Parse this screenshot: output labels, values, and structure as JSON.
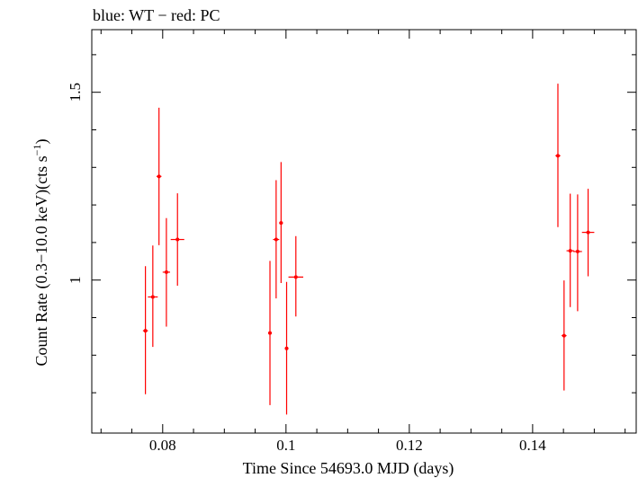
{
  "chart_data": {
    "type": "scatter",
    "title": "blue: WT − red: PC",
    "xlabel": "Time Since 54693.0 MJD (days)",
    "ylabel_main": "Count Rate (0.3−10.0 keV)(cts s",
    "ylabel_sup": "−1",
    "ylabel_tail": ")",
    "xlim": [
      0.0685,
      0.1568
    ],
    "ylim": [
      0.5926,
      1.6667
    ],
    "xticks": [
      0.08,
      0.1,
      0.12,
      0.14
    ],
    "xtick_labels": [
      "0.08",
      "0.1",
      "0.12",
      "0.14"
    ],
    "yticks": [
      1,
      1.5
    ],
    "ytick_labels": [
      "1",
      "1.5"
    ],
    "yminor_ticks": [
      0.7,
      0.8,
      0.9,
      1.1,
      1.2,
      1.3,
      1.4,
      1.6
    ],
    "colors": {
      "PC": "#ff0000",
      "WT": "#0000ff",
      "axis": "#000000"
    },
    "series": [
      {
        "name": "PC",
        "color": "#ff0000",
        "points": [
          {
            "x": 0.0772,
            "xerr": 0.0004,
            "y": 0.865,
            "ylo": 0.696,
            "yhi": 1.037
          },
          {
            "x": 0.0784,
            "xerr": 0.0008,
            "y": 0.955,
            "ylo": 0.822,
            "yhi": 1.092
          },
          {
            "x": 0.0794,
            "xerr": 0.0004,
            "y": 1.276,
            "ylo": 1.093,
            "yhi": 1.459
          },
          {
            "x": 0.0806,
            "xerr": 0.0006,
            "y": 1.021,
            "ylo": 0.876,
            "yhi": 1.165
          },
          {
            "x": 0.0824,
            "xerr": 0.0011,
            "y": 1.108,
            "ylo": 0.985,
            "yhi": 1.231
          },
          {
            "x": 0.0974,
            "xerr": 0.0003,
            "y": 0.859,
            "ylo": 0.667,
            "yhi": 1.051
          },
          {
            "x": 0.0984,
            "xerr": 0.0005,
            "y": 1.108,
            "ylo": 0.951,
            "yhi": 1.266
          },
          {
            "x": 0.0992,
            "xerr": 0.0003,
            "y": 1.152,
            "ylo": 0.992,
            "yhi": 1.314
          },
          {
            "x": 0.1001,
            "xerr": 0.0003,
            "y": 0.818,
            "ylo": 0.642,
            "yhi": 0.995
          },
          {
            "x": 0.1016,
            "xerr": 0.0012,
            "y": 1.008,
            "ylo": 0.903,
            "yhi": 1.117
          },
          {
            "x": 0.1441,
            "xerr": 0.0004,
            "y": 1.331,
            "ylo": 1.141,
            "yhi": 1.523
          },
          {
            "x": 0.1451,
            "xerr": 0.0004,
            "y": 0.852,
            "ylo": 0.706,
            "yhi": 0.999
          },
          {
            "x": 0.1461,
            "xerr": 0.0006,
            "y": 1.078,
            "ylo": 0.928,
            "yhi": 1.23
          },
          {
            "x": 0.1473,
            "xerr": 0.0007,
            "y": 1.076,
            "ylo": 0.917,
            "yhi": 1.228
          },
          {
            "x": 0.149,
            "xerr": 0.001,
            "y": 1.127,
            "ylo": 1.01,
            "yhi": 1.243
          }
        ]
      }
    ]
  }
}
